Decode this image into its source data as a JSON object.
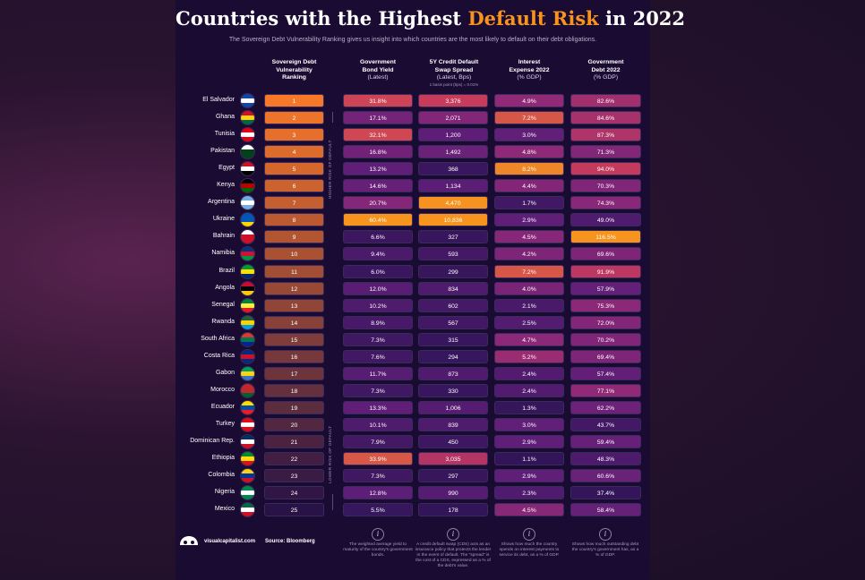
{
  "title": {
    "prefix": "Countries with the Highest ",
    "highlight": "Default Risk",
    "suffix": " in 2022"
  },
  "subtitle": "The Sovereign Debt Vulnerability Ranking gives us insight into which countries are the most likely to default on their debt obligations.",
  "columns": {
    "rank": {
      "l1": "Sovereign Debt",
      "l2": "Vulnerability",
      "l3": "Ranking"
    },
    "yield": {
      "l1": "Government",
      "l2": "Bond Yield",
      "l3": "(Latest)"
    },
    "cds": {
      "l1": "5Y Credit Default",
      "l2": "Swap Spread",
      "l3": "(Latest, Bps)",
      "note": "1 basis point (bps) = 0.01%"
    },
    "int": {
      "l1": "Interest",
      "l2": "Expense 2022",
      "l3": "(% GDP)"
    },
    "debt": {
      "l1": "Government",
      "l2": "Debt 2022",
      "l3": "(% GDP)"
    }
  },
  "axis": {
    "higher": "HIGHER RISK OF DEFAULT",
    "lower": "LOWER RISK OF DEFAULT"
  },
  "chart_data": {
    "type": "table",
    "title": "Countries with the Highest Default Risk in 2022",
    "columns": [
      "Country",
      "Sovereign Debt Vulnerability Ranking",
      "Government Bond Yield (Latest)",
      "5Y Credit Default Swap Spread (Latest, Bps)",
      "Interest Expense 2022 (% GDP)",
      "Government Debt 2022 (% GDP)"
    ],
    "rows": [
      {
        "country": "El Salvador",
        "rank": "1",
        "yield": "31.8%",
        "cds": "3,376",
        "int": "4.9%",
        "debt": "82.6%"
      },
      {
        "country": "Ghana",
        "rank": "2",
        "yield": "17.1%",
        "cds": "2,071",
        "int": "7.2%",
        "debt": "84.6%"
      },
      {
        "country": "Tunisia",
        "rank": "3",
        "yield": "32.1%",
        "cds": "1,200",
        "int": "3.0%",
        "debt": "87.3%"
      },
      {
        "country": "Pakistan",
        "rank": "4",
        "yield": "16.8%",
        "cds": "1,492",
        "int": "4.8%",
        "debt": "71.3%"
      },
      {
        "country": "Egypt",
        "rank": "5",
        "yield": "13.2%",
        "cds": "368",
        "int": "8.2%",
        "debt": "94.0%"
      },
      {
        "country": "Kenya",
        "rank": "6",
        "yield": "14.6%",
        "cds": "1,134",
        "int": "4.4%",
        "debt": "70.3%"
      },
      {
        "country": "Argentina",
        "rank": "7",
        "yield": "20.7%",
        "cds": "4,470",
        "int": "1.7%",
        "debt": "74.3%"
      },
      {
        "country": "Ukraine",
        "rank": "8",
        "yield": "60.4%",
        "cds": "10,836",
        "int": "2.9%",
        "debt": "49.0%"
      },
      {
        "country": "Bahrain",
        "rank": "9",
        "yield": "6.6%",
        "cds": "327",
        "int": "4.5%",
        "debt": "116.5%"
      },
      {
        "country": "Namibia",
        "rank": "10",
        "yield": "9.4%",
        "cds": "593",
        "int": "4.2%",
        "debt": "69.6%"
      },
      {
        "country": "Brazil",
        "rank": "11",
        "yield": "6.0%",
        "cds": "299",
        "int": "7.2%",
        "debt": "91.9%"
      },
      {
        "country": "Angola",
        "rank": "12",
        "yield": "12.0%",
        "cds": "834",
        "int": "4.0%",
        "debt": "57.9%"
      },
      {
        "country": "Senegal",
        "rank": "13",
        "yield": "10.2%",
        "cds": "602",
        "int": "2.1%",
        "debt": "75.3%"
      },
      {
        "country": "Rwanda",
        "rank": "14",
        "yield": "8.9%",
        "cds": "567",
        "int": "2.5%",
        "debt": "72.0%"
      },
      {
        "country": "South Africa",
        "rank": "15",
        "yield": "7.3%",
        "cds": "315",
        "int": "4.7%",
        "debt": "70.2%"
      },
      {
        "country": "Costa Rica",
        "rank": "16",
        "yield": "7.6%",
        "cds": "294",
        "int": "5.2%",
        "debt": "69.4%"
      },
      {
        "country": "Gabon",
        "rank": "17",
        "yield": "11.7%",
        "cds": "873",
        "int": "2.4%",
        "debt": "57.4%"
      },
      {
        "country": "Morocco",
        "rank": "18",
        "yield": "7.3%",
        "cds": "330",
        "int": "2.4%",
        "debt": "77.1%"
      },
      {
        "country": "Ecuador",
        "rank": "19",
        "yield": "13.3%",
        "cds": "1,006",
        "int": "1.3%",
        "debt": "62.2%"
      },
      {
        "country": "Turkey",
        "rank": "20",
        "yield": "10.1%",
        "cds": "839",
        "int": "3.0%",
        "debt": "43.7%"
      },
      {
        "country": "Dominican Rep.",
        "rank": "21",
        "yield": "7.9%",
        "cds": "450",
        "int": "2.9%",
        "debt": "59.4%"
      },
      {
        "country": "Ethiopia",
        "rank": "22",
        "yield": "33.9%",
        "cds": "3,035",
        "int": "1.1%",
        "debt": "48.3%"
      },
      {
        "country": "Colombia",
        "rank": "23",
        "yield": "7.3%",
        "cds": "297",
        "int": "2.9%",
        "debt": "60.6%"
      },
      {
        "country": "Nigeria",
        "rank": "24",
        "yield": "12.8%",
        "cds": "990",
        "int": "2.3%",
        "debt": "37.4%"
      },
      {
        "country": "Mexico",
        "rank": "25",
        "yield": "5.5%",
        "cds": "178",
        "int": "4.5%",
        "debt": "58.4%"
      }
    ]
  },
  "footnotes": {
    "yield": "The weighted average yield to maturity of the country's government bonds.",
    "cds": "A credit default swap (CDS) acts as an insurance policy that protects the lender in the event of default. The \"spread\" is the cost of a CDS, expressed as a % of the debt's value.",
    "int": "Shows how much the country spends on interest payments to service its debt, as a % of GDP.",
    "debt": "Shows how much outstanding debt the country's government has, as a % of GDP."
  },
  "footer": {
    "brand": "visualcapitalist.com",
    "source": "Source: Bloomberg"
  },
  "info_glyph": "i"
}
